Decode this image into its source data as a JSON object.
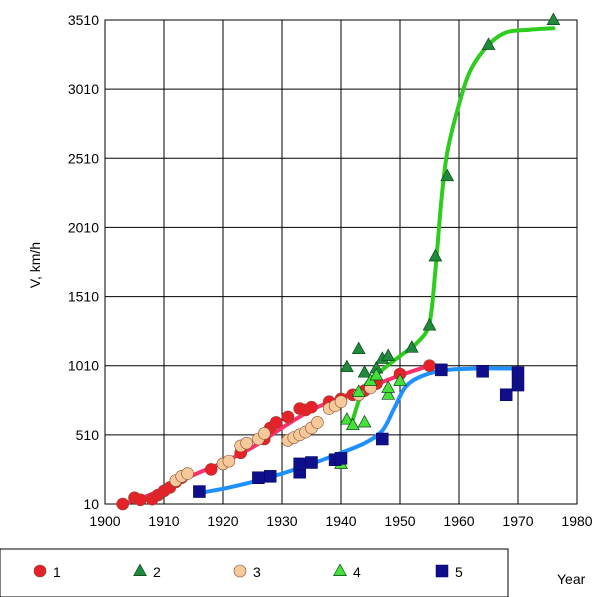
{
  "chart_data": {
    "type": "scatter",
    "title": "",
    "xlabel": "Year",
    "ylabel": "V, km/h",
    "xlim": [
      1900,
      1980
    ],
    "ylim": [
      10,
      3510
    ],
    "xticks": [
      1900,
      1910,
      1920,
      1930,
      1940,
      1950,
      1960,
      1970,
      1980
    ],
    "yticks": [
      10,
      510,
      1010,
      1510,
      2010,
      2510,
      3010,
      3510
    ],
    "grid": true,
    "legend": "bottom",
    "series": [
      {
        "name": "1",
        "marker": "circle",
        "color": "#e8202a",
        "points": [
          [
            1903,
            10
          ],
          [
            1905,
            55
          ],
          [
            1906,
            40
          ],
          [
            1908,
            45
          ],
          [
            1909,
            75
          ],
          [
            1910,
            105
          ],
          [
            1911,
            130
          ],
          [
            1912,
            170
          ],
          [
            1913,
            200
          ],
          [
            1918,
            260
          ],
          [
            1920,
            300
          ],
          [
            1923,
            380
          ],
          [
            1927,
            480
          ],
          [
            1928,
            560
          ],
          [
            1929,
            600
          ],
          [
            1931,
            640
          ],
          [
            1933,
            700
          ],
          [
            1934,
            690
          ],
          [
            1935,
            710
          ],
          [
            1938,
            750
          ],
          [
            1940,
            770
          ],
          [
            1942,
            800
          ],
          [
            1944,
            830
          ],
          [
            1946,
            880
          ],
          [
            1950,
            950
          ],
          [
            1955,
            1010
          ]
        ],
        "trend": [
          [
            1903,
            10
          ],
          [
            1906,
            50
          ],
          [
            1910,
            120
          ],
          [
            1915,
            220
          ],
          [
            1920,
            310
          ],
          [
            1925,
            420
          ],
          [
            1930,
            560
          ],
          [
            1935,
            690
          ],
          [
            1940,
            780
          ],
          [
            1945,
            860
          ],
          [
            1950,
            940
          ],
          [
            1955,
            1010
          ]
        ]
      },
      {
        "name": "2",
        "marker": "triangle",
        "color": "#1f8a3b",
        "points": [
          [
            1941,
            1000
          ],
          [
            1943,
            1130
          ],
          [
            1944,
            960
          ],
          [
            1946,
            990
          ],
          [
            1947,
            1060
          ],
          [
            1948,
            1080
          ],
          [
            1952,
            1140
          ],
          [
            1955,
            1300
          ],
          [
            1956,
            1800
          ],
          [
            1958,
            2380
          ],
          [
            1965,
            3330
          ],
          [
            1976,
            3510
          ]
        ]
      },
      {
        "name": "3",
        "marker": "circle",
        "color": "#f5c99a",
        "points": [
          [
            1912,
            180
          ],
          [
            1913,
            210
          ],
          [
            1914,
            230
          ],
          [
            1920,
            300
          ],
          [
            1921,
            320
          ],
          [
            1923,
            430
          ],
          [
            1924,
            450
          ],
          [
            1926,
            480
          ],
          [
            1927,
            520
          ],
          [
            1931,
            470
          ],
          [
            1932,
            490
          ],
          [
            1933,
            510
          ],
          [
            1934,
            530
          ],
          [
            1935,
            560
          ],
          [
            1936,
            600
          ],
          [
            1938,
            700
          ],
          [
            1939,
            720
          ],
          [
            1940,
            750
          ],
          [
            1943,
            800
          ],
          [
            1945,
            850
          ]
        ]
      },
      {
        "name": "4",
        "marker": "triangle",
        "color": "#45e03a",
        "points": [
          [
            1940,
            300
          ],
          [
            1941,
            620
          ],
          [
            1942,
            580
          ],
          [
            1943,
            820
          ],
          [
            1944,
            600
          ],
          [
            1945,
            900
          ],
          [
            1946,
            940
          ],
          [
            1948,
            800
          ],
          [
            1948,
            850
          ],
          [
            1950,
            900
          ]
        ],
        "trend": [
          [
            1942,
            620
          ],
          [
            1944,
            860
          ],
          [
            1947,
            980
          ],
          [
            1950,
            1080
          ],
          [
            1953,
            1180
          ],
          [
            1955,
            1320
          ],
          [
            1956,
            1700
          ],
          [
            1957,
            2200
          ],
          [
            1958,
            2550
          ],
          [
            1960,
            2900
          ],
          [
            1962,
            3150
          ],
          [
            1965,
            3330
          ],
          [
            1968,
            3420
          ],
          [
            1972,
            3440
          ],
          [
            1976,
            3450
          ]
        ]
      },
      {
        "name": "5",
        "marker": "square",
        "color": "#0f0f8c",
        "points": [
          [
            1916,
            100
          ],
          [
            1926,
            200
          ],
          [
            1928,
            210
          ],
          [
            1933,
            240
          ],
          [
            1933,
            300
          ],
          [
            1935,
            310
          ],
          [
            1939,
            330
          ],
          [
            1940,
            340
          ],
          [
            1947,
            480
          ],
          [
            1957,
            980
          ],
          [
            1964,
            970
          ],
          [
            1968,
            800
          ],
          [
            1970,
            870
          ],
          [
            1970,
            960
          ]
        ],
        "trend": [
          [
            1916,
            90
          ],
          [
            1920,
            120
          ],
          [
            1925,
            170
          ],
          [
            1930,
            230
          ],
          [
            1935,
            300
          ],
          [
            1940,
            380
          ],
          [
            1944,
            450
          ],
          [
            1947,
            540
          ],
          [
            1949,
            700
          ],
          [
            1951,
            860
          ],
          [
            1954,
            940
          ],
          [
            1958,
            980
          ],
          [
            1963,
            990
          ],
          [
            1970,
            990
          ]
        ]
      }
    ],
    "trend_colors": {
      "1": "#ff2f6a",
      "4": "#2ecc1f",
      "5": "#1e90ff"
    }
  }
}
